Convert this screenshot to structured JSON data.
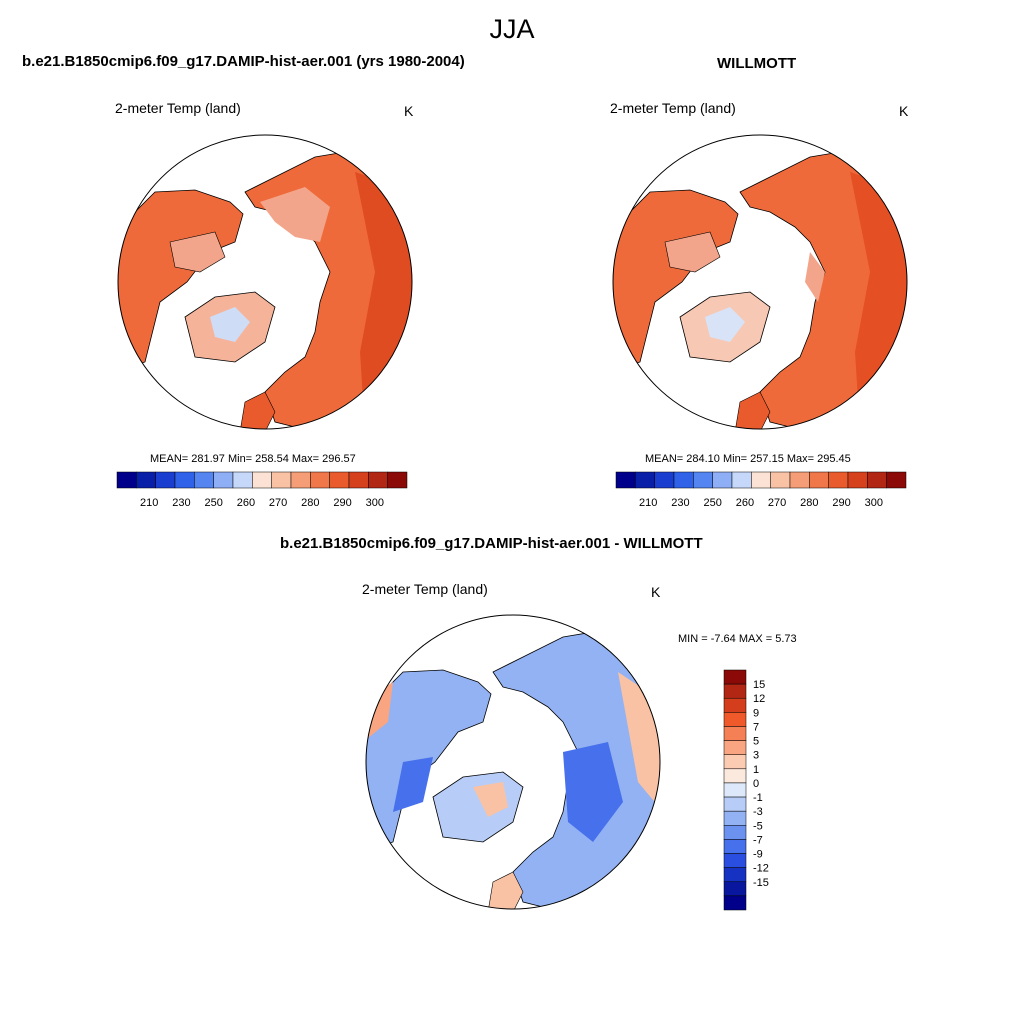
{
  "main_title": "JJA",
  "panels": {
    "left": {
      "title": "b.e21.B1850cmip6.f09_g17.DAMIP-hist-aer.001 (yrs 1980-2004)",
      "var_label": "2-meter Temp (land)",
      "units": "K",
      "stats": "MEAN= 281.97  Min= 258.54  Max= 296.57"
    },
    "right": {
      "title": "WILLMOTT",
      "var_label": "2-meter Temp (land)",
      "units": "K",
      "stats": "MEAN= 284.10  Min= 257.15  Max= 295.45"
    },
    "diff": {
      "title": "b.e21.B1850cmip6.f09_g17.DAMIP-hist-aer.001 - WILLMOTT",
      "var_label": "2-meter Temp (land)",
      "units": "K",
      "stats": "MIN =  -7.64 MAX =   5.73"
    }
  },
  "colorbars": {
    "abs": {
      "colors": [
        "#00008b",
        "#0a1fa8",
        "#1a3fd0",
        "#2f62e8",
        "#5585f0",
        "#8eaef5",
        "#c6d8fa",
        "#fbe2d4",
        "#f9c2a4",
        "#f59d76",
        "#f0774a",
        "#e95a2c",
        "#d5401d",
        "#b22614",
        "#8b0a07"
      ],
      "tick_labels": [
        "210",
        "230",
        "250",
        "260",
        "270",
        "280",
        "290",
        "300"
      ]
    },
    "diff": {
      "colors": [
        "#8b0a07",
        "#b22614",
        "#d53e1d",
        "#f05a2a",
        "#f58055",
        "#f9a582",
        "#fbcbb2",
        "#fbe9de",
        "#dde8fb",
        "#b7cdf7",
        "#93b2f3",
        "#6c92ef",
        "#4770ec",
        "#2a4fe0",
        "#1532c2",
        "#08179d",
        "#00008b"
      ],
      "tick_labels": [
        "15",
        "12",
        "9",
        "7",
        "5",
        "3",
        "1",
        "0",
        "-1",
        "-3",
        "-5",
        "-7",
        "-9",
        "-12",
        "-15"
      ]
    }
  },
  "colors": {
    "land_warm": "#ef6a3b",
    "land_cool": "#6f95ec",
    "coast": "#000000"
  }
}
